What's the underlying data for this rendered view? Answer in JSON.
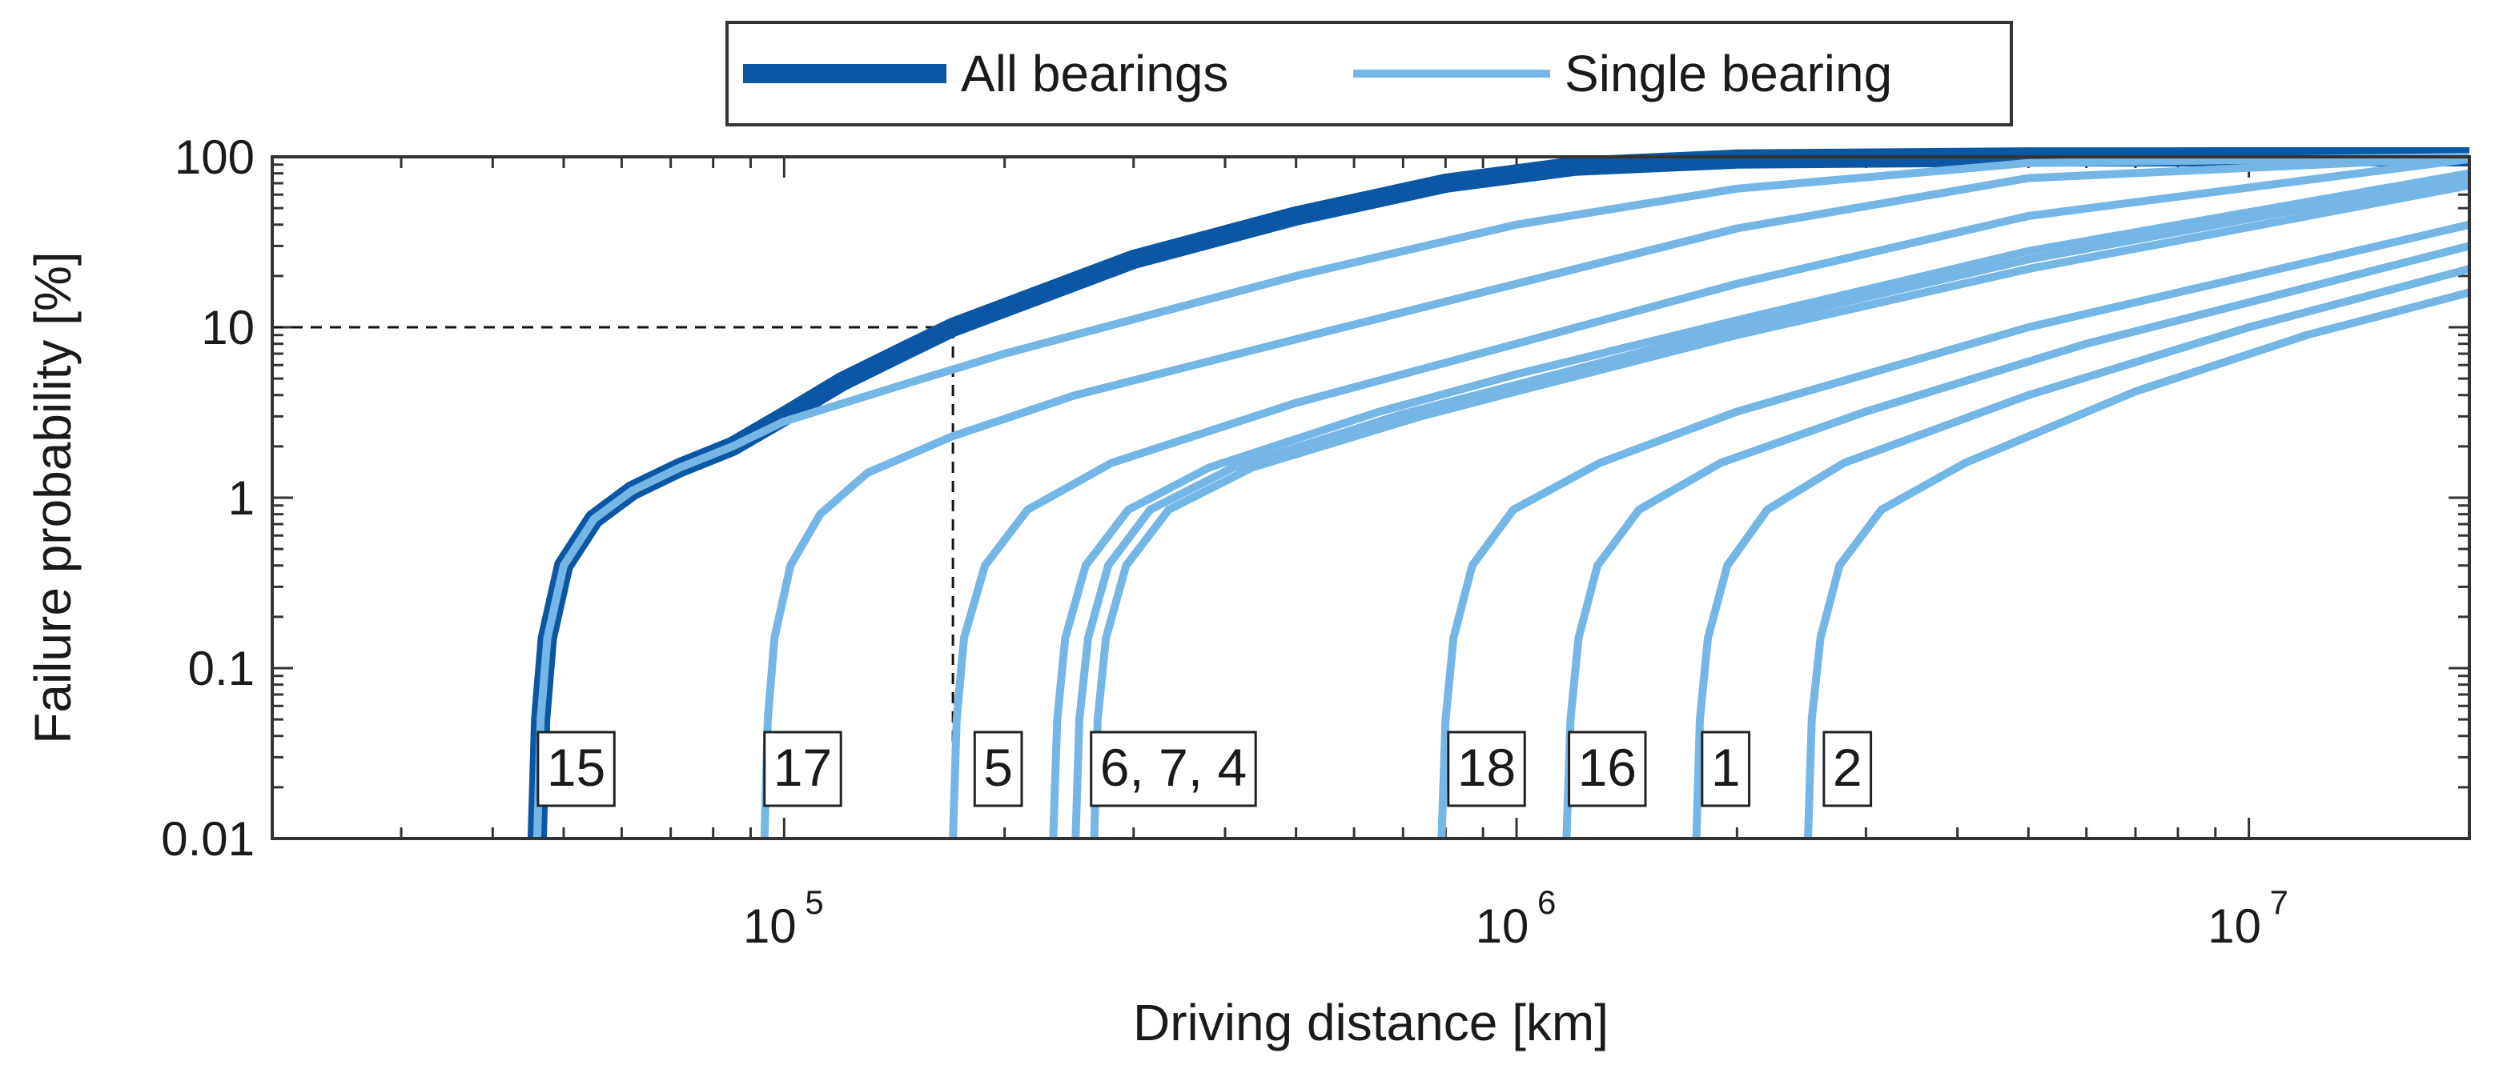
{
  "chart_data": {
    "type": "line",
    "x_scale": "log",
    "y_scale": "log",
    "xlabel": "Driving distance [km]",
    "ylabel": "Failure probability [%]",
    "xlim": [
      20000,
      20000000
    ],
    "ylim": [
      0.01,
      100
    ],
    "x_ticks": [
      {
        "value": 100000,
        "base": "10",
        "exp": "5"
      },
      {
        "value": 1000000,
        "base": "10",
        "exp": "6"
      },
      {
        "value": 10000000,
        "base": "10",
        "exp": "7"
      }
    ],
    "y_ticks": [
      {
        "value": 100,
        "label": "100"
      },
      {
        "value": 10,
        "label": "10"
      },
      {
        "value": 1,
        "label": "1"
      },
      {
        "value": 0.1,
        "label": "0.1"
      },
      {
        "value": 0.01,
        "label": "0.01"
      }
    ],
    "legend": {
      "placement": "top-center",
      "entries": [
        {
          "name": "All bearings",
          "color": "#0b57a4"
        },
        {
          "name": "Single bearing",
          "color": "#74b6e6"
        }
      ]
    },
    "reference_point": {
      "x": 170000,
      "y": 10
    },
    "all_bearings": {
      "name": "All bearings",
      "color": "#0b57a4",
      "points": [
        [
          46000,
          0.01
        ],
        [
          46500,
          0.05
        ],
        [
          47500,
          0.15
        ],
        [
          50000,
          0.4
        ],
        [
          55000,
          0.75
        ],
        [
          62000,
          1.1
        ],
        [
          72000,
          1.5
        ],
        [
          85000,
          2.0
        ],
        [
          100000,
          3.0
        ],
        [
          120000,
          4.8
        ],
        [
          150000,
          7.7
        ],
        [
          170000,
          10
        ],
        [
          200000,
          13
        ],
        [
          300000,
          25
        ],
        [
          500000,
          45
        ],
        [
          800000,
          70
        ],
        [
          1200000,
          88
        ],
        [
          2000000,
          97
        ],
        [
          5000000,
          99.9
        ],
        [
          20000000,
          100
        ]
      ]
    },
    "single_bearings": [
      {
        "label": "15",
        "color": "#74b6e6",
        "points": [
          [
            46000,
            0.01
          ],
          [
            46500,
            0.05
          ],
          [
            47500,
            0.15
          ],
          [
            50000,
            0.4
          ],
          [
            55000,
            0.75
          ],
          [
            62000,
            1.1
          ],
          [
            72000,
            1.5
          ],
          [
            85000,
            2.0
          ],
          [
            100000,
            2.8
          ],
          [
            150000,
            4.8
          ],
          [
            200000,
            7
          ],
          [
            500000,
            20
          ],
          [
            1000000,
            40
          ],
          [
            2000000,
            65
          ],
          [
            5000000,
            92
          ],
          [
            20000000,
            100
          ]
        ]
      },
      {
        "label": "17",
        "color": "#74b6e6",
        "points": [
          [
            94000,
            0.01
          ],
          [
            95000,
            0.05
          ],
          [
            97000,
            0.15
          ],
          [
            102000,
            0.4
          ],
          [
            112000,
            0.8
          ],
          [
            130000,
            1.4
          ],
          [
            170000,
            2.3
          ],
          [
            250000,
            4
          ],
          [
            500000,
            8.5
          ],
          [
            1000000,
            18
          ],
          [
            2000000,
            38
          ],
          [
            5000000,
            75
          ],
          [
            20000000,
            99
          ]
        ]
      },
      {
        "label": "5",
        "color": "#74b6e6",
        "points": [
          [
            170000,
            0.01
          ],
          [
            172000,
            0.05
          ],
          [
            176000,
            0.15
          ],
          [
            188000,
            0.4
          ],
          [
            215000,
            0.85
          ],
          [
            280000,
            1.6
          ],
          [
            500000,
            3.6
          ],
          [
            1000000,
            8
          ],
          [
            2000000,
            18
          ],
          [
            5000000,
            45
          ],
          [
            20000000,
            97
          ]
        ]
      },
      {
        "label": "6, 7, 4",
        "color": "#74b6e6",
        "points": [
          [
            233000,
            0.01
          ],
          [
            236000,
            0.05
          ],
          [
            242000,
            0.15
          ],
          [
            258000,
            0.4
          ],
          [
            295000,
            0.85
          ],
          [
            380000,
            1.5
          ],
          [
            650000,
            3.2
          ],
          [
            1000000,
            5.3
          ],
          [
            2000000,
            11
          ],
          [
            5000000,
            28
          ],
          [
            20000000,
            80
          ]
        ]
      },
      {
        "label": "6, 7, 4",
        "color": "#74b6e6",
        "points": [
          [
            250000,
            0.01
          ],
          [
            253000,
            0.05
          ],
          [
            260000,
            0.15
          ],
          [
            277000,
            0.4
          ],
          [
            316000,
            0.85
          ],
          [
            410000,
            1.5
          ],
          [
            700000,
            3.1
          ],
          [
            1000000,
            4.6
          ],
          [
            2000000,
            10
          ],
          [
            5000000,
            25
          ],
          [
            20000000,
            75
          ]
        ]
      },
      {
        "label": "6, 7, 4",
        "color": "#74b6e6",
        "points": [
          [
            265000,
            0.01
          ],
          [
            268000,
            0.05
          ],
          [
            275000,
            0.15
          ],
          [
            293000,
            0.4
          ],
          [
            335000,
            0.85
          ],
          [
            435000,
            1.5
          ],
          [
            740000,
            3.0
          ],
          [
            1000000,
            4.2
          ],
          [
            2000000,
            9
          ],
          [
            5000000,
            22
          ],
          [
            20000000,
            68
          ]
        ]
      },
      {
        "label": "18",
        "color": "#74b6e6",
        "points": [
          [
            790000,
            0.01
          ],
          [
            800000,
            0.05
          ],
          [
            820000,
            0.15
          ],
          [
            870000,
            0.4
          ],
          [
            990000,
            0.85
          ],
          [
            1300000,
            1.6
          ],
          [
            2000000,
            3.2
          ],
          [
            5000000,
            10
          ],
          [
            10000000,
            20
          ],
          [
            20000000,
            40
          ]
        ]
      },
      {
        "label": "16",
        "color": "#74b6e6",
        "points": [
          [
            1170000,
            0.01
          ],
          [
            1185000,
            0.05
          ],
          [
            1215000,
            0.15
          ],
          [
            1290000,
            0.4
          ],
          [
            1470000,
            0.85
          ],
          [
            1900000,
            1.6
          ],
          [
            3000000,
            3.2
          ],
          [
            6000000,
            8
          ],
          [
            10000000,
            14
          ],
          [
            20000000,
            30
          ]
        ]
      },
      {
        "label": "1",
        "color": "#74b6e6",
        "points": [
          [
            1760000,
            0.01
          ],
          [
            1780000,
            0.05
          ],
          [
            1825000,
            0.15
          ],
          [
            1940000,
            0.4
          ],
          [
            2200000,
            0.85
          ],
          [
            2800000,
            1.6
          ],
          [
            5000000,
            4
          ],
          [
            10000000,
            10
          ],
          [
            20000000,
            22
          ]
        ]
      },
      {
        "label": "2",
        "color": "#74b6e6",
        "points": [
          [
            2500000,
            0.01
          ],
          [
            2530000,
            0.05
          ],
          [
            2600000,
            0.15
          ],
          [
            2760000,
            0.4
          ],
          [
            3150000,
            0.85
          ],
          [
            4100000,
            1.6
          ],
          [
            7000000,
            4.2
          ],
          [
            12000000,
            9
          ],
          [
            20000000,
            16
          ]
        ]
      }
    ],
    "curve_labels": [
      {
        "text": "15",
        "x": 52000
      },
      {
        "text": "17",
        "x": 106000
      },
      {
        "text": "5",
        "x": 196000
      },
      {
        "text": "6, 7, 4",
        "x": 340000
      },
      {
        "text": "18",
        "x": 910000
      },
      {
        "text": "16",
        "x": 1330000
      },
      {
        "text": "1",
        "x": 1930000
      },
      {
        "text": "2",
        "x": 2830000
      }
    ]
  }
}
